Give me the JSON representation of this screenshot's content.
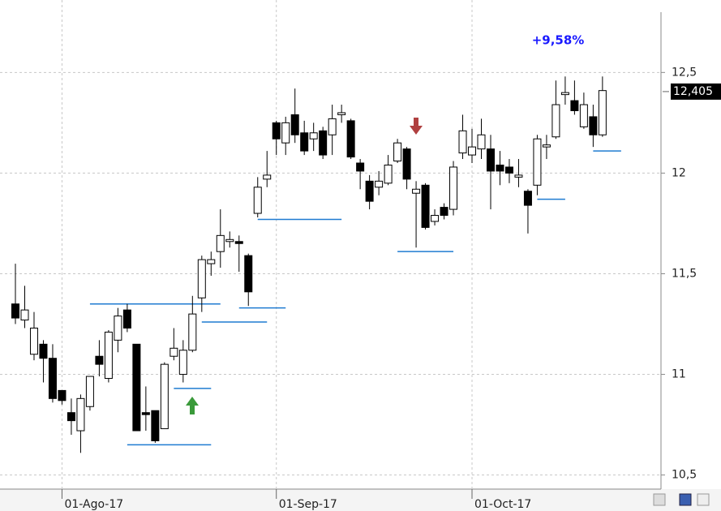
{
  "chart_data": {
    "type": "candlestick",
    "categories": [
      null,
      null,
      null,
      null,
      null,
      "01-Ago-17",
      null,
      null,
      null,
      null,
      null,
      null,
      null,
      null,
      null,
      null,
      null,
      null,
      null,
      null,
      null,
      null,
      null,
      null,
      null,
      null,
      null,
      null,
      "01-Sep-17",
      null,
      null,
      null,
      null,
      null,
      null,
      null,
      null,
      null,
      null,
      null,
      null,
      null,
      null,
      null,
      null,
      null,
      null,
      null,
      null,
      "01-Oct-17",
      null,
      null,
      null,
      null,
      null,
      null,
      null,
      null,
      null,
      null,
      null,
      null,
      null,
      null
    ],
    "open": [
      11.35,
      11.27,
      11.1,
      11.15,
      11.08,
      10.92,
      10.81,
      10.72,
      10.84,
      11.09,
      10.98,
      11.17,
      11.32,
      11.15,
      10.81,
      10.82,
      10.73,
      11.09,
      11.0,
      11.12,
      11.38,
      11.55,
      11.61,
      11.66,
      11.66,
      11.59,
      11.8,
      11.97,
      12.25,
      12.15,
      12.29,
      12.2,
      12.17,
      12.21,
      12.19,
      12.29,
      12.26,
      12.05,
      11.96,
      11.93,
      11.95,
      12.06,
      12.12,
      11.9,
      11.94,
      11.76,
      11.83,
      11.82,
      12.1,
      12.09,
      12.12,
      12.12,
      12.04,
      12.03,
      11.98,
      11.91,
      11.94,
      12.13,
      12.18,
      12.39,
      12.36,
      12.23,
      12.28,
      12.19
    ],
    "high": [
      11.55,
      11.44,
      11.31,
      11.17,
      11.15,
      10.92,
      10.88,
      10.9,
      10.99,
      11.17,
      11.22,
      11.33,
      11.35,
      11.15,
      10.94,
      10.82,
      11.06,
      11.23,
      11.17,
      11.39,
      11.59,
      11.61,
      11.82,
      11.71,
      11.69,
      11.6,
      11.98,
      12.11,
      12.26,
      12.28,
      12.42,
      12.26,
      12.25,
      12.23,
      12.34,
      12.34,
      12.27,
      12.07,
      11.99,
      12.01,
      12.09,
      12.17,
      12.13,
      11.96,
      11.95,
      11.82,
      11.85,
      12.06,
      12.29,
      12.22,
      12.27,
      12.19,
      12.11,
      12.07,
      12.07,
      11.92,
      12.19,
      12.19,
      12.46,
      12.48,
      12.46,
      12.4,
      12.34,
      12.48
    ],
    "low": [
      11.25,
      11.23,
      11.07,
      10.96,
      10.86,
      10.85,
      10.7,
      10.61,
      10.82,
      10.99,
      10.96,
      11.11,
      11.21,
      10.72,
      10.72,
      10.66,
      10.73,
      11.07,
      10.96,
      11.11,
      11.31,
      11.49,
      11.53,
      11.63,
      11.51,
      11.34,
      11.78,
      11.93,
      12.09,
      12.09,
      12.15,
      12.09,
      12.11,
      12.07,
      12.09,
      12.25,
      12.07,
      11.92,
      11.82,
      11.89,
      11.94,
      12.05,
      11.92,
      11.63,
      11.72,
      11.74,
      11.77,
      11.79,
      12.07,
      12.05,
      12.07,
      11.82,
      11.94,
      11.95,
      11.93,
      11.7,
      11.89,
      12.07,
      12.17,
      12.34,
      12.29,
      12.22,
      12.13,
      12.18
    ],
    "close": [
      11.28,
      11.32,
      11.23,
      11.08,
      10.88,
      10.87,
      10.77,
      10.88,
      10.99,
      11.05,
      11.21,
      11.29,
      11.23,
      10.72,
      10.8,
      10.67,
      11.05,
      11.13,
      11.12,
      11.3,
      11.57,
      11.57,
      11.69,
      11.67,
      11.65,
      11.41,
      11.93,
      11.99,
      12.17,
      12.25,
      12.19,
      12.11,
      12.2,
      12.09,
      12.27,
      12.3,
      12.08,
      12.01,
      11.86,
      11.96,
      12.04,
      12.15,
      11.97,
      11.92,
      11.73,
      11.79,
      11.79,
      12.03,
      12.21,
      12.13,
      12.19,
      12.01,
      12.01,
      12.0,
      11.99,
      11.84,
      12.17,
      12.14,
      12.34,
      12.4,
      12.31,
      12.34,
      12.19,
      12.41
    ],
    "up_color": "#ffffff",
    "down_color": "#000000",
    "levels": [
      {
        "value": 11.35,
        "from": 8,
        "to": 22
      },
      {
        "value": 11.26,
        "from": 20,
        "to": 27
      },
      {
        "value": 11.33,
        "from": 24,
        "to": 29
      },
      {
        "value": 10.65,
        "from": 12,
        "to": 21
      },
      {
        "value": 10.93,
        "from": 17,
        "to": 21
      },
      {
        "value": 11.77,
        "from": 26,
        "to": 35
      },
      {
        "value": 11.61,
        "from": 41,
        "to": 47
      },
      {
        "value": 11.87,
        "from": 56,
        "to": 59
      },
      {
        "value": 12.11,
        "from": 62,
        "to": 65
      }
    ],
    "level_color": "#1f7bd1",
    "last_price": {
      "value": 12.405,
      "label": "12,405"
    },
    "annotation": "+9,58%",
    "ylim": [
      10.43,
      12.86
    ],
    "yticks": [
      {
        "value": 10.5,
        "label": "10,5"
      },
      11,
      {
        "value": 11.5,
        "label": "11,5"
      },
      12,
      {
        "value": 12.5,
        "label": "12,5"
      }
    ],
    "grid": true
  }
}
